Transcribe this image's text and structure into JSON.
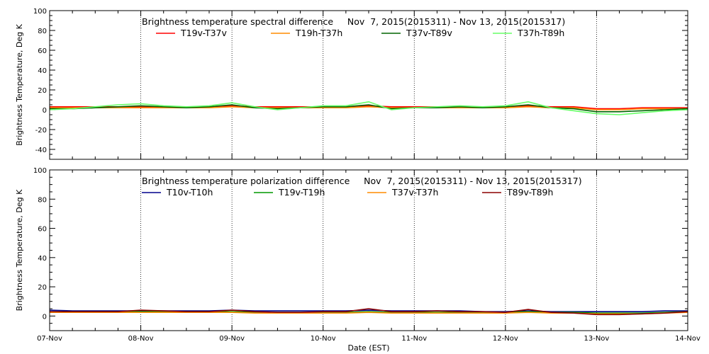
{
  "figure": {
    "xlabel": "Date (EST)",
    "x_tick_labels": [
      "07-Nov",
      "08-Nov",
      "09-Nov",
      "10-Nov",
      "11-Nov",
      "12-Nov",
      "13-Nov",
      "14-Nov"
    ]
  },
  "chart_data": [
    {
      "type": "line",
      "title": "Brightness temperature spectral difference     Nov  7, 2015(2015311) - Nov 13, 2015(2015317)",
      "ylabel": "Brightness Temperature, Deg K",
      "xlabel": "",
      "x_unit": "days from 07-Nov",
      "xlim": [
        0,
        7
      ],
      "ylim": [
        -50,
        100
      ],
      "y_ticks": [
        -40,
        -20,
        0,
        20,
        40,
        60,
        80,
        100
      ],
      "y_tick_labels": [
        "-40",
        "-20",
        "0",
        "20",
        "40",
        "60",
        "80",
        "100"
      ],
      "grid": "vertical dotted at each day",
      "legend": "top, single row",
      "x": [
        0,
        0.25,
        0.5,
        0.75,
        1,
        1.25,
        1.5,
        1.75,
        2,
        2.25,
        2.5,
        2.75,
        3,
        3.25,
        3.5,
        3.75,
        4,
        4.25,
        4.5,
        4.75,
        5,
        5.25,
        5.5,
        5.75,
        6,
        6.25,
        6.5,
        6.75,
        7
      ],
      "series": [
        {
          "name": "T19v-T37v",
          "color": "#ff0000",
          "values": [
            3,
            3,
            3,
            3,
            3,
            3,
            3,
            3,
            4,
            3,
            3,
            3,
            3,
            3,
            4,
            3,
            3,
            3,
            3,
            3,
            3,
            4,
            3,
            3,
            1,
            1,
            2,
            2,
            2
          ]
        },
        {
          "name": "T19h-T37h",
          "color": "#ff8c00",
          "values": [
            2,
            2,
            2,
            2,
            2,
            2,
            2,
            2,
            3,
            2,
            2,
            2,
            2,
            2,
            3,
            2,
            2,
            2,
            2,
            2,
            2,
            3,
            2,
            2,
            0,
            0,
            1,
            1,
            1
          ]
        },
        {
          "name": "T37v-T89v",
          "color": "#006400",
          "values": [
            1,
            1,
            2,
            3,
            4,
            3,
            2,
            3,
            5,
            2,
            1,
            2,
            3,
            3,
            5,
            1,
            2,
            2,
            3,
            2,
            3,
            5,
            2,
            1,
            -2,
            -2,
            -1,
            0,
            1
          ]
        },
        {
          "name": "T37h-T89h",
          "color": "#66ff66",
          "values": [
            0,
            1,
            3,
            5,
            6,
            4,
            3,
            4,
            7,
            3,
            0,
            2,
            4,
            4,
            8,
            0,
            2,
            3,
            4,
            3,
            4,
            8,
            2,
            -1,
            -4,
            -5,
            -3,
            -1,
            0
          ]
        }
      ]
    },
    {
      "type": "line",
      "title": "Brightness temperature polarization difference     Nov  7, 2015(2015311) - Nov 13, 2015(2015317)",
      "ylabel": "Brightness Temperature, Deg K",
      "xlabel": "Date (EST)",
      "x_unit": "days from 07-Nov",
      "xlim": [
        0,
        7
      ],
      "ylim": [
        -10,
        100
      ],
      "y_ticks": [
        0,
        20,
        40,
        60,
        80,
        100
      ],
      "y_tick_labels": [
        "0",
        "20",
        "40",
        "60",
        "80",
        "100"
      ],
      "grid": "vertical dotted at each day",
      "legend": "top, single row",
      "x": [
        0,
        0.25,
        0.5,
        0.75,
        1,
        1.25,
        1.5,
        1.75,
        2,
        2.25,
        2.5,
        2.75,
        3,
        3.25,
        3.5,
        3.75,
        4,
        4.25,
        4.5,
        4.75,
        5,
        5.25,
        5.5,
        5.75,
        6,
        6.25,
        6.5,
        6.75,
        7
      ],
      "series": [
        {
          "name": "T10v-T10h",
          "color": "#00008b",
          "values": [
            4,
            3.5,
            3.5,
            3.5,
            3.5,
            3.5,
            3.5,
            3.5,
            4,
            3.5,
            3.5,
            3.5,
            3.5,
            3.5,
            4,
            3.5,
            3.5,
            3.5,
            3.5,
            3,
            3,
            3.5,
            3,
            3,
            3,
            3,
            3,
            3.5,
            3.5
          ]
        },
        {
          "name": "T19v-T19h",
          "color": "#009900",
          "values": [
            3,
            3,
            3,
            3,
            3,
            3,
            3,
            3,
            3,
            2.5,
            2.5,
            2.5,
            2.5,
            2.5,
            3,
            2.5,
            2.5,
            2.5,
            2.5,
            2.5,
            2.5,
            3,
            2.5,
            2.5,
            2,
            2,
            2,
            2.5,
            3
          ]
        },
        {
          "name": "T37v-T37h",
          "color": "#ff8c00",
          "values": [
            2.5,
            2.5,
            2.5,
            2.5,
            2.5,
            2.5,
            2.5,
            2.5,
            2.5,
            2,
            2,
            2,
            2,
            2,
            2.5,
            2,
            2,
            2,
            2,
            2,
            2,
            2.5,
            2,
            2,
            1.5,
            1.5,
            1.5,
            2,
            2.5
          ]
        },
        {
          "name": "T89v-T89h",
          "color": "#8b0000",
          "values": [
            3,
            3,
            3,
            3,
            4,
            3.5,
            3,
            3,
            4,
            3,
            2.5,
            2.5,
            3,
            3,
            5,
            3,
            3,
            3.5,
            3,
            3,
            2.5,
            4.5,
            2.5,
            2,
            1,
            1,
            1.5,
            2,
            3
          ]
        }
      ]
    }
  ]
}
